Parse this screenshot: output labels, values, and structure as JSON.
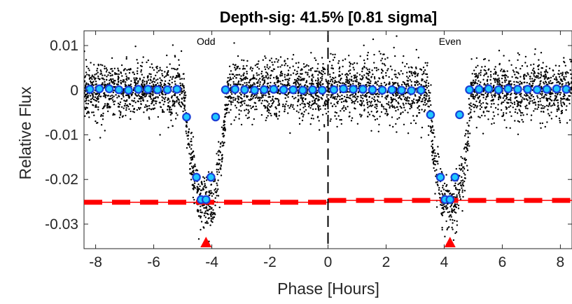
{
  "chart_data": {
    "type": "scatter",
    "title": "Depth-sig: 41.5% [0.81 sigma]",
    "xlabel": "Phase [Hours]",
    "ylabel": "Relative Flux",
    "xlim": [
      -8.4,
      8.4
    ],
    "ylim": [
      -0.0355,
      0.0133
    ],
    "xticks": [
      -8,
      -6,
      -4,
      -2,
      0,
      2,
      4,
      6,
      8
    ],
    "xtick_labels": [
      "-8",
      "-6",
      "-4",
      "-2",
      "0",
      "2",
      "4",
      "6",
      "8"
    ],
    "yticks": [
      0.01,
      0,
      -0.01,
      -0.02,
      -0.03
    ],
    "ytick_labels": [
      "0.01",
      "0",
      "-0.01",
      "-0.02",
      "-0.03"
    ],
    "annotations": [
      {
        "text": "Odd",
        "x": -4.2
      },
      {
        "text": "Even",
        "x": 4.2
      }
    ],
    "divider_x": 0,
    "raw_points_color": "#000000",
    "binned_points_color": "#1ec8ff",
    "binned_edge_color": "#1a3fd6",
    "depth_line_color": "#ff0000",
    "odd_depth": -0.0251,
    "even_depth": -0.0247,
    "odd_transit_center": -4.2,
    "even_transit_center": 4.2,
    "binned_series": {
      "name": "binned",
      "x": [
        -8.2,
        -7.87,
        -7.53,
        -7.2,
        -6.87,
        -6.53,
        -6.2,
        -5.87,
        -5.53,
        -5.2,
        -4.87,
        -4.53,
        -4.37,
        -4.2,
        -4.03,
        -3.87,
        -3.53,
        -3.2,
        -2.87,
        -2.53,
        -2.2,
        -1.87,
        -1.53,
        -1.2,
        -0.87,
        -0.53,
        -0.2,
        0.2,
        0.53,
        0.87,
        1.2,
        1.53,
        1.87,
        2.2,
        2.53,
        2.87,
        3.2,
        3.53,
        3.87,
        4.03,
        4.2,
        4.37,
        4.53,
        4.87,
        5.2,
        5.53,
        5.87,
        6.2,
        6.53,
        6.87,
        7.2,
        7.53,
        7.87,
        8.2
      ],
      "y": [
        0.0002,
        0.0003,
        0.0003,
        0.0001,
        0.0,
        0.0002,
        0.0002,
        0.0001,
        0.0001,
        0.0002,
        -0.006,
        -0.0195,
        -0.0245,
        -0.0245,
        -0.0195,
        -0.006,
        0.0001,
        0.0002,
        0.0001,
        0.0,
        0.0001,
        0.0002,
        0.0001,
        0.0001,
        0.0,
        0.0001,
        0.0,
        0.0001,
        0.0003,
        0.0002,
        0.0002,
        0.0001,
        0.0,
        0.0001,
        0.0,
        -0.0001,
        0.0,
        -0.0055,
        -0.0195,
        -0.0245,
        -0.0245,
        -0.0195,
        -0.0055,
        0.0001,
        0.0002,
        0.0003,
        0.0001,
        0.0003,
        0.0002,
        0.0002,
        0.0001,
        0.0002,
        0.0003,
        0.0002
      ]
    },
    "raw_scatter_sigma": 0.0032,
    "transit_half_width_hours": 0.75,
    "transit_depth": 0.0262
  }
}
